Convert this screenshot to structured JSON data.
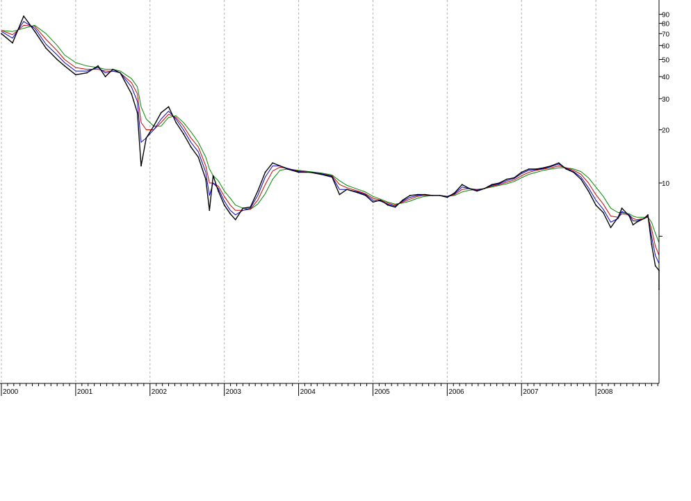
{
  "chart_data": {
    "type": "line",
    "title": "",
    "xlabel": "",
    "ylabel": "",
    "y_scale": "log",
    "ylim": [
      2.3,
      100
    ],
    "x_tick_labels": [
      "2000",
      "2001",
      "2002",
      "2003",
      "2004",
      "2005",
      "2006",
      "2007",
      "2008"
    ],
    "y_tick_labels": [
      "90",
      "80",
      "70",
      "60",
      "50",
      "40",
      "30",
      "20",
      "10"
    ],
    "y_tick_values": [
      90,
      80,
      70,
      60,
      50,
      40,
      30,
      20,
      10
    ],
    "y_minor_ticks": [
      5
    ],
    "grid": {
      "vertical": true,
      "horizontal": false
    },
    "legend": "none",
    "series": [
      {
        "kind": "price",
        "color": "#000000",
        "x": [
          2000.0,
          2000.15,
          2000.3,
          2000.45,
          2000.6,
          2000.75,
          2000.85,
          2001.0,
          2001.15,
          2001.3,
          2001.4,
          2001.5,
          2001.6,
          2001.75,
          2001.83,
          2001.88,
          2001.95,
          2002.05,
          2002.15,
          2002.25,
          2002.35,
          2002.45,
          2002.55,
          2002.65,
          2002.75,
          2002.8,
          2002.85,
          2002.92,
          2003.0,
          2003.08,
          2003.15,
          2003.25,
          2003.35,
          2003.45,
          2003.55,
          2003.65,
          2003.75,
          2003.85,
          2004.0,
          2004.15,
          2004.3,
          2004.45,
          2004.55,
          2004.65,
          2004.8,
          2004.9,
          2005.0,
          2005.1,
          2005.2,
          2005.3,
          2005.4,
          2005.5,
          2005.6,
          2005.7,
          2005.8,
          2005.9,
          2006.0,
          2006.1,
          2006.2,
          2006.3,
          2006.4,
          2006.5,
          2006.6,
          2006.7,
          2006.8,
          2006.9,
          2007.0,
          2007.1,
          2007.2,
          2007.3,
          2007.4,
          2007.5,
          2007.6,
          2007.7,
          2007.8,
          2007.9,
          2008.0,
          2008.1,
          2008.2,
          2008.3,
          2008.35,
          2008.45,
          2008.5,
          2008.55,
          2008.65,
          2008.7,
          2008.75,
          2008.8,
          2008.85,
          2008.9
        ],
        "values": [
          70,
          62,
          88,
          72,
          58,
          50,
          46,
          41,
          42,
          46,
          40,
          44,
          42,
          32,
          25,
          12.5,
          18,
          21,
          25,
          27,
          22,
          19,
          16,
          14,
          10.5,
          7,
          11,
          9,
          7.5,
          6.7,
          6.2,
          7.2,
          7.3,
          9,
          11.5,
          13,
          12.5,
          12,
          11.5,
          11.5,
          11.2,
          10.8,
          8.6,
          9.2,
          8.8,
          8.5,
          7.8,
          8,
          7.5,
          7.3,
          8,
          8.5,
          8.6,
          8.6,
          8.5,
          8.5,
          8.3,
          8.8,
          9.8,
          9.3,
          9,
          9.3,
          9.8,
          10,
          10.5,
          10.7,
          11.5,
          12,
          12,
          12.2,
          12.5,
          13,
          12,
          11.5,
          10.5,
          9,
          7.5,
          6.8,
          5.6,
          6.4,
          7.2,
          6.5,
          5.8,
          6,
          6.3,
          6.6,
          4.5,
          3.4,
          3.2,
          2.5
        ]
      },
      {
        "kind": "moving-average-short",
        "color": "#0000cc",
        "x": [
          2000.0,
          2000.15,
          2000.3,
          2000.45,
          2000.6,
          2000.75,
          2000.85,
          2001.0,
          2001.15,
          2001.3,
          2001.4,
          2001.5,
          2001.6,
          2001.75,
          2001.83,
          2001.88,
          2001.95,
          2002.05,
          2002.15,
          2002.25,
          2002.35,
          2002.45,
          2002.55,
          2002.65,
          2002.75,
          2002.8,
          2002.85,
          2002.92,
          2003.0,
          2003.08,
          2003.15,
          2003.25,
          2003.35,
          2003.45,
          2003.55,
          2003.65,
          2003.75,
          2003.85,
          2004.0,
          2004.15,
          2004.3,
          2004.45,
          2004.55,
          2004.65,
          2004.8,
          2004.9,
          2005.0,
          2005.1,
          2005.2,
          2005.3,
          2005.4,
          2005.5,
          2005.6,
          2005.7,
          2005.8,
          2005.9,
          2006.0,
          2006.1,
          2006.2,
          2006.3,
          2006.4,
          2006.5,
          2006.6,
          2006.7,
          2006.8,
          2006.9,
          2007.0,
          2007.1,
          2007.2,
          2007.3,
          2007.4,
          2007.5,
          2007.6,
          2007.7,
          2007.8,
          2007.9,
          2008.0,
          2008.1,
          2008.2,
          2008.3,
          2008.35,
          2008.45,
          2008.5,
          2008.55,
          2008.65,
          2008.7,
          2008.75,
          2008.8,
          2008.85,
          2008.9
        ],
        "values": [
          72,
          66,
          82,
          75,
          61,
          53,
          48,
          43,
          43,
          45,
          42,
          43,
          42,
          35,
          29,
          17,
          18,
          20,
          23,
          25.5,
          23,
          20,
          17,
          15,
          11.5,
          8.5,
          10,
          9.3,
          7.9,
          7,
          6.6,
          7,
          7.2,
          8.5,
          10.8,
          12.5,
          12.5,
          12.1,
          11.6,
          11.5,
          11.3,
          10.9,
          9.2,
          9.2,
          8.9,
          8.6,
          8,
          7.9,
          7.6,
          7.4,
          7.9,
          8.3,
          8.5,
          8.6,
          8.5,
          8.5,
          8.4,
          8.7,
          9.5,
          9.3,
          9.1,
          9.3,
          9.7,
          9.9,
          10.3,
          10.6,
          11.3,
          11.8,
          11.9,
          12.1,
          12.4,
          12.8,
          12.1,
          11.6,
          10.8,
          9.4,
          8,
          7.1,
          6,
          6.3,
          6.9,
          6.6,
          6.1,
          6.1,
          6.3,
          6.5,
          5,
          3.9,
          3.5,
          2.9
        ]
      },
      {
        "kind": "moving-average-medium",
        "color": "#cc0000",
        "x": [
          2000.0,
          2000.15,
          2000.3,
          2000.45,
          2000.6,
          2000.75,
          2000.85,
          2001.0,
          2001.15,
          2001.3,
          2001.4,
          2001.5,
          2001.6,
          2001.75,
          2001.83,
          2001.88,
          2001.95,
          2002.05,
          2002.15,
          2002.25,
          2002.35,
          2002.45,
          2002.55,
          2002.65,
          2002.75,
          2002.8,
          2002.85,
          2002.92,
          2003.0,
          2003.08,
          2003.15,
          2003.25,
          2003.35,
          2003.45,
          2003.55,
          2003.65,
          2003.75,
          2003.85,
          2004.0,
          2004.15,
          2004.3,
          2004.45,
          2004.55,
          2004.65,
          2004.8,
          2004.9,
          2005.0,
          2005.1,
          2005.2,
          2005.3,
          2005.4,
          2005.5,
          2005.6,
          2005.7,
          2005.8,
          2005.9,
          2006.0,
          2006.1,
          2006.2,
          2006.3,
          2006.4,
          2006.5,
          2006.6,
          2006.7,
          2006.8,
          2006.9,
          2007.0,
          2007.1,
          2007.2,
          2007.3,
          2007.4,
          2007.5,
          2007.6,
          2007.7,
          2007.8,
          2007.9,
          2008.0,
          2008.1,
          2008.2,
          2008.3,
          2008.35,
          2008.45,
          2008.5,
          2008.55,
          2008.65,
          2008.7,
          2008.75,
          2008.8,
          2008.85,
          2008.9
        ],
        "values": [
          73,
          69,
          78,
          77,
          65,
          56,
          50,
          45,
          44,
          44,
          43,
          43,
          42,
          37,
          32,
          22,
          20,
          20,
          22,
          24.5,
          23.5,
          21,
          18,
          16,
          12.5,
          10,
          10,
          9.6,
          8.4,
          7.5,
          7,
          7,
          7.1,
          8,
          9.8,
          11.7,
          12.3,
          12.1,
          11.7,
          11.5,
          11.3,
          11,
          9.8,
          9.4,
          9,
          8.7,
          8.2,
          8,
          7.7,
          7.5,
          7.8,
          8.1,
          8.4,
          8.5,
          8.5,
          8.5,
          8.4,
          8.6,
          9.2,
          9.3,
          9.2,
          9.3,
          9.6,
          9.8,
          10.1,
          10.4,
          11,
          11.5,
          11.8,
          12,
          12.2,
          12.5,
          12.2,
          11.8,
          11.2,
          10,
          8.6,
          7.6,
          6.5,
          6.4,
          6.7,
          6.6,
          6.3,
          6.2,
          6.3,
          6.4,
          5.5,
          4.4,
          3.9,
          3.3
        ]
      },
      {
        "kind": "moving-average-long",
        "color": "#008800",
        "x": [
          2000.0,
          2000.15,
          2000.3,
          2000.45,
          2000.6,
          2000.75,
          2000.85,
          2001.0,
          2001.15,
          2001.3,
          2001.4,
          2001.5,
          2001.6,
          2001.75,
          2001.83,
          2001.88,
          2001.95,
          2002.05,
          2002.15,
          2002.25,
          2002.35,
          2002.45,
          2002.55,
          2002.65,
          2002.75,
          2002.8,
          2002.85,
          2002.92,
          2003.0,
          2003.08,
          2003.15,
          2003.25,
          2003.35,
          2003.45,
          2003.55,
          2003.65,
          2003.75,
          2003.85,
          2004.0,
          2004.15,
          2004.3,
          2004.45,
          2004.55,
          2004.65,
          2004.8,
          2004.9,
          2005.0,
          2005.1,
          2005.2,
          2005.3,
          2005.4,
          2005.5,
          2005.6,
          2005.7,
          2005.8,
          2005.9,
          2006.0,
          2006.1,
          2006.2,
          2006.3,
          2006.4,
          2006.5,
          2006.6,
          2006.7,
          2006.8,
          2006.9,
          2007.0,
          2007.1,
          2007.2,
          2007.3,
          2007.4,
          2007.5,
          2007.6,
          2007.7,
          2007.8,
          2007.9,
          2008.0,
          2008.1,
          2008.2,
          2008.3,
          2008.35,
          2008.45,
          2008.5,
          2008.55,
          2008.65,
          2008.7,
          2008.75,
          2008.8,
          2008.85,
          2008.9
        ],
        "values": [
          73,
          72,
          75,
          78,
          70,
          60,
          53,
          48,
          46,
          45,
          44,
          44,
          43,
          39,
          35,
          27,
          23,
          21,
          21,
          23.5,
          24,
          22,
          19.5,
          17,
          14,
          12,
          11,
          10.3,
          9,
          8.2,
          7.5,
          7.2,
          7.1,
          7.6,
          8.7,
          10.5,
          11.8,
          12,
          11.8,
          11.6,
          11.4,
          11.1,
          10.3,
          9.7,
          9.2,
          8.9,
          8.4,
          8.1,
          7.8,
          7.6,
          7.7,
          7.9,
          8.2,
          8.4,
          8.5,
          8.5,
          8.4,
          8.5,
          8.9,
          9.1,
          9.2,
          9.3,
          9.5,
          9.7,
          9.9,
          10.2,
          10.7,
          11.2,
          11.5,
          11.8,
          12,
          12.2,
          12.2,
          12,
          11.6,
          10.7,
          9.5,
          8.4,
          7.2,
          6.8,
          6.8,
          6.7,
          6.5,
          6.4,
          6.4,
          6.4,
          6,
          5.2,
          4.6,
          4
        ]
      }
    ],
    "colors": {
      "background": "#ffffff",
      "axis": "#000000",
      "grid": "#b0b0b0"
    }
  }
}
